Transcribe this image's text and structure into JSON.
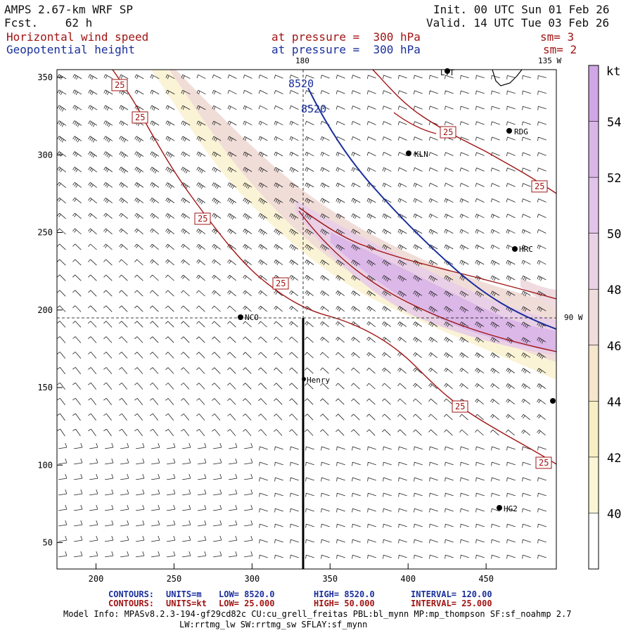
{
  "header": {
    "model": "AMPS 2.67-km WRF SP",
    "fcst": "Fcst.    62 h",
    "init": "Init. 00 UTC Sun 01 Feb 26",
    "valid": "Valid. 14 UTC Tue 03 Feb 26",
    "field1": "Horizontal wind speed",
    "field2": "Geopotential height",
    "level1": "at pressure =  300 hPa",
    "level2": "at pressure =  300 hPa",
    "sm1": "sm= 3",
    "sm2": "sm= 2"
  },
  "map": {
    "lon_labels": [
      {
        "text": "180"
      },
      {
        "text": "135 W"
      },
      {
        "text": "90 W"
      }
    ],
    "stations": [
      "LTT",
      "RDG",
      "KLN",
      "HRC",
      "NCO",
      "Henry",
      "HG2"
    ],
    "height_labels": [
      "8520",
      "8520"
    ],
    "speed_labels": [
      "25",
      "25",
      "25",
      "25",
      "25",
      "25",
      "25"
    ]
  },
  "chart_data": {
    "type": "heatmap",
    "x_ticks": [
      "200",
      "250",
      "300",
      "350",
      "400",
      "450"
    ],
    "y_ticks": [
      "350",
      "300",
      "250",
      "200",
      "150",
      "100",
      "50"
    ],
    "xlim": [
      175,
      495
    ],
    "ylim": [
      33,
      355
    ],
    "colorbar": {
      "unit": "kt",
      "levels": [
        54,
        52,
        50,
        48,
        46,
        44,
        42,
        40
      ],
      "labels": [
        "54",
        "52",
        "50",
        "48",
        "46",
        "44",
        "42",
        "40"
      ],
      "colors": [
        "#d0a6e6",
        "#dab6e8",
        "#e2c4ea",
        "#ead2e6",
        "#f0dcdc",
        "#f5e6cc",
        "#f8eec4",
        "#fbf5d4",
        "#ffffff"
      ]
    }
  },
  "footer": {
    "c1_label": "CONTOURS:",
    "c1_units": "UNITS=m",
    "c1_low": "LOW=  8520.0",
    "c1_high": "HIGH=  8520.0",
    "c1_interval": "INTERVAL=     120.00",
    "c2_label": "CONTOURS:",
    "c2_units": "UNITS=kt",
    "c2_low": "LOW=  25.000",
    "c2_high": "HIGH=  50.000",
    "c2_interval": "INTERVAL=     25.000",
    "info1": "Model Info: MPASv8.2.3-194-gf29cd82c CU:cu_grell_freitas PBL:bl_mynn MP:mp_thompson SF:sf_noahmp 2.7",
    "info2": "LW:rrtmg_lw SW:rrtmg_sw SFLAY:sf_mynn"
  },
  "colors": {
    "height_contour": "#1a2f9c",
    "speed_contour": "#a01414"
  }
}
